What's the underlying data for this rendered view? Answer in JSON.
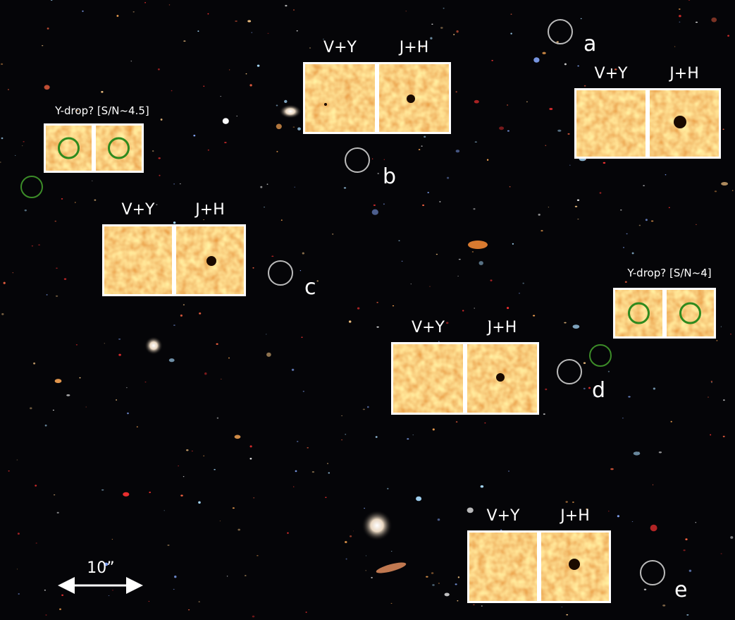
{
  "panels": [
    {
      "labels": [
        "V+Y",
        "J+H"
      ]
    },
    {
      "labels": [
        "V+Y",
        "J+H"
      ]
    },
    {
      "labels": [
        "V+Y",
        "J+H"
      ]
    },
    {
      "labels": [
        "V+Y",
        "J+H"
      ]
    },
    {
      "labels": [
        "V+Y",
        "J+H"
      ]
    }
  ],
  "y_drop_panels": [
    {
      "label": "Y-drop? [S/N~4.5]"
    },
    {
      "label": "Y-drop? [S/N~4]"
    }
  ],
  "markers": [
    {
      "label": "a"
    },
    {
      "label": "b"
    },
    {
      "label": "c"
    },
    {
      "label": "d"
    },
    {
      "label": "e"
    }
  ],
  "scale_bar": {
    "label": "10”"
  }
}
